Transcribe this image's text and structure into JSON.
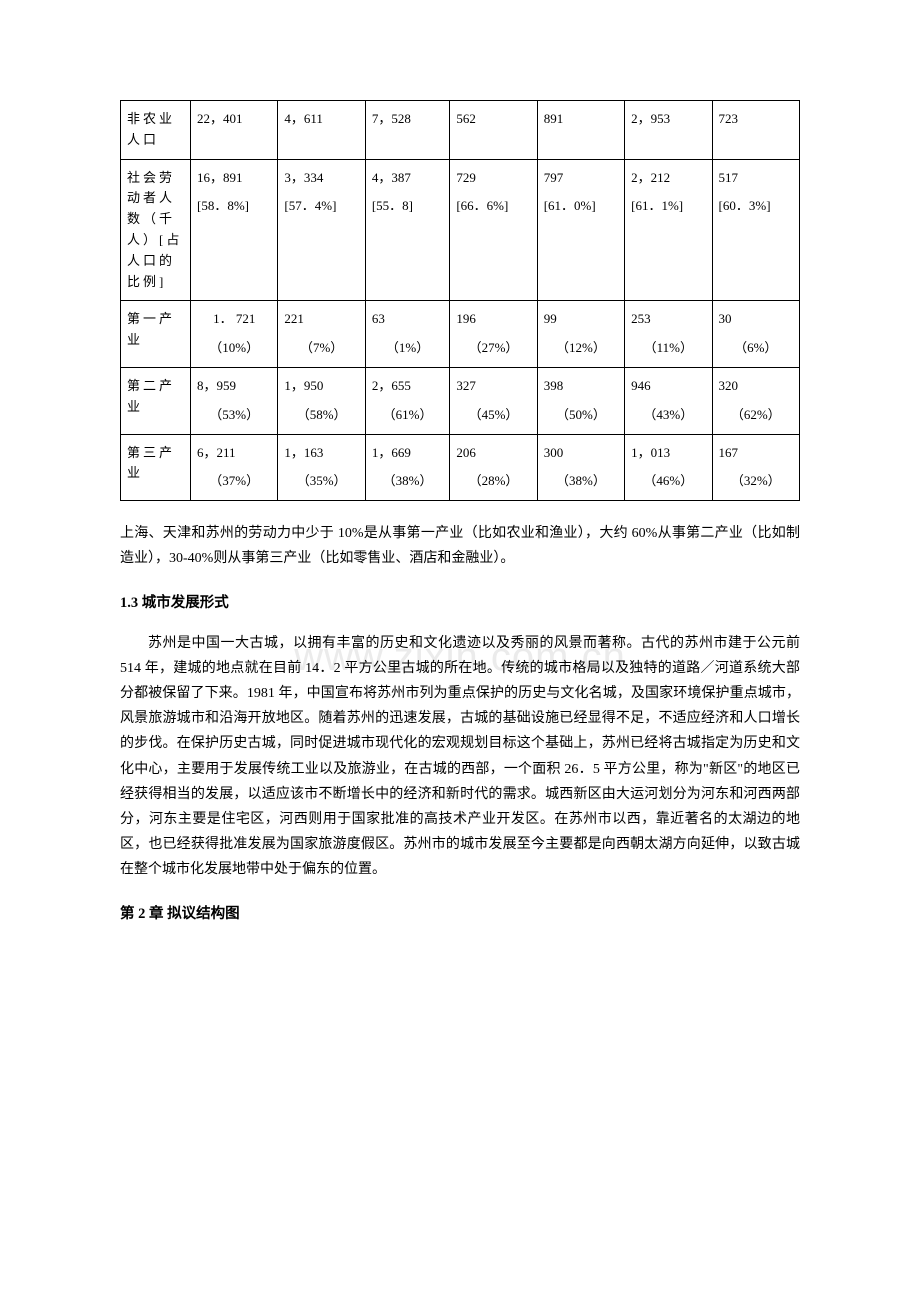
{
  "watermark": "www.zixin.com.cn",
  "table": {
    "rows": [
      {
        "label": "非农业人口",
        "cells": [
          {
            "v1": "22，401"
          },
          {
            "v1": "4，611"
          },
          {
            "v1": "7，528"
          },
          {
            "v1": "562"
          },
          {
            "v1": "891"
          },
          {
            "v1": "2，953"
          },
          {
            "v1": "723"
          }
        ]
      },
      {
        "label": "社会劳动者人数（千人）[占人口的比例]",
        "cells": [
          {
            "v1": "16，891",
            "v2": "[58．8%]"
          },
          {
            "v1": "3，334",
            "v2": "[57．4%]"
          },
          {
            "v1": "4，387",
            "v2": "[55．8]"
          },
          {
            "v1": "729",
            "v2": "[66．6%]"
          },
          {
            "v1": "797",
            "v2": "[61．0%]"
          },
          {
            "v1": "2，212",
            "v2": "[61．1%]"
          },
          {
            "v1": "517",
            "v2": "[60．3%]"
          }
        ]
      },
      {
        "label": "第一产业",
        "cells": [
          {
            "v1": "1． 721",
            "v2": "（10%）"
          },
          {
            "v1": "221",
            "v2": "（7%）"
          },
          {
            "v1": "63",
            "v2": "（1%）"
          },
          {
            "v1": "196",
            "v2": "（27%）"
          },
          {
            "v1": "99",
            "v2": "（12%）"
          },
          {
            "v1": "253",
            "v2": "（11%）"
          },
          {
            "v1": "30",
            "v2": "（6%）"
          }
        ]
      },
      {
        "label": "第二产业",
        "cells": [
          {
            "v1": "8，959",
            "v2": "（53%）"
          },
          {
            "v1": "1，950",
            "v2": "（58%）"
          },
          {
            "v1": "2，655",
            "v2": "（61%）"
          },
          {
            "v1": "327",
            "v2": "（45%）"
          },
          {
            "v1": "398",
            "v2": "（50%）"
          },
          {
            "v1": "946",
            "v2": "（43%）"
          },
          {
            "v1": "320",
            "v2": "（62%）"
          }
        ]
      },
      {
        "label": "第三产业",
        "cells": [
          {
            "v1": "6，211",
            "v2": "（37%）"
          },
          {
            "v1": "1，163",
            "v2": "（35%）"
          },
          {
            "v1": "1，669",
            "v2": "（38%）"
          },
          {
            "v1": "206",
            "v2": "（28%）"
          },
          {
            "v1": "300",
            "v2": "（38%）"
          },
          {
            "v1": "1，013",
            "v2": "（46%）"
          },
          {
            "v1": "167",
            "v2": "（32%）"
          }
        ]
      }
    ]
  },
  "para1": "上海、天津和苏州的劳动力中少于 10%是从事第一产业（比如农业和渔业），大约 60%从事第二产业（比如制造业），30-40%则从事第三产业（比如零售业、酒店和金融业）。",
  "heading1": "1.3 城市发展形式",
  "para2": "苏州是中国一大古城，以拥有丰富的历史和文化遗迹以及秀丽的风景而著称。古代的苏州市建于公元前 514 年，建城的地点就在目前 14．2 平方公里古城的所在地。传统的城市格局以及独特的道路／河道系统大部分都被保留了下来。1981 年，中国宣布将苏州市列为重点保护的历史与文化名城，及国家环境保护重点城市，风景旅游城市和沿海开放地区。随着苏州的迅速发展，古城的基础设施已经显得不足，不适应经济和人口增长的步伐。在保护历史古城，同时促进城市现代化的宏观规划目标这个基础上，苏州已经将古城指定为历史和文化中心，主要用于发展传统工业以及旅游业，在古城的西部，一个面积 26．5 平方公里，称为\"新区\"的地区已经获得相当的发展，以适应该市不断增长中的经济和新时代的需求。城西新区由大运河划分为河东和河西两部分，河东主要是住宅区，河西则用于国家批准的高技术产业开发区。在苏州市以西，靠近著名的太湖边的地区，也已经获得批准发展为国家旅游度假区。苏州市的城市发展至今主要都是向西朝太湖方向延伸，以致古城在整个城市化发展地带中处于偏东的位置。",
  "heading2": "第 2 章  拟议结构图"
}
